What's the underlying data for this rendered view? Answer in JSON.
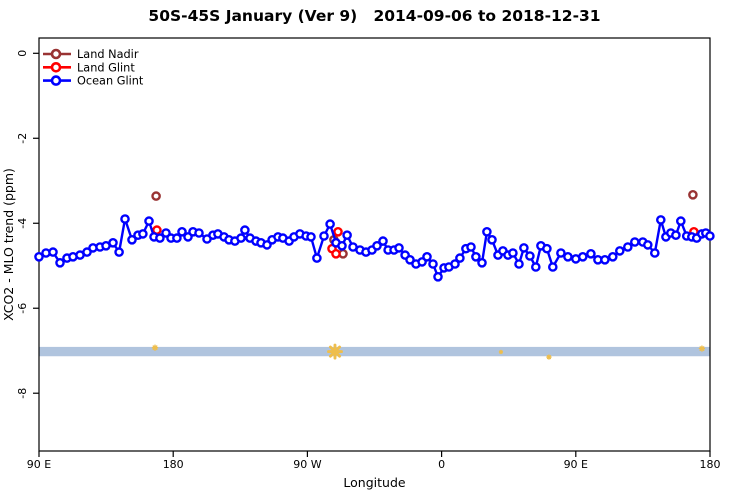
{
  "figure": {
    "title_main": "50S-45S January (Ver 9)",
    "title_dates": "2014-09-06 to 2018-12-31"
  },
  "chart_data": {
    "type": "line",
    "title": "50S-45S January (Ver 9)   2014-09-06 to 2018-12-31",
    "xlabel": "Longitude",
    "ylabel": "XCO2 - MLO trend (ppm)",
    "x_axis": {
      "range": [
        90,
        540
      ],
      "ticks": [
        90,
        180,
        270,
        360,
        450,
        540
      ],
      "tick_labels": [
        "90 E",
        "180",
        "90 W",
        "0",
        "90 E",
        "180"
      ],
      "note": "longitude wrapped eastward from 90E around the globe to 180"
    },
    "y_axis": {
      "range": [
        -9.36,
        0.36
      ],
      "ticks": [
        0,
        -2,
        -4,
        -6,
        -8
      ],
      "tick_labels": [
        "0",
        "-2",
        "-4",
        "-6",
        "-8"
      ],
      "grid": false
    },
    "legend": {
      "position": "top-left",
      "items": [
        {
          "label": "Land Nadir",
          "color": "#993333"
        },
        {
          "label": "Land Glint",
          "color": "#FF0000"
        },
        {
          "label": "Ocean Glint",
          "color": "#0000FF"
        }
      ]
    },
    "series": [
      {
        "name": "Land Nadir",
        "color": "#993333",
        "line": false,
        "marker": "open-circle",
        "points": [
          [
            168.5,
            -3.36
          ],
          [
            287.8,
            -4.39
          ],
          [
            293.9,
            -4.72
          ],
          [
            528.5,
            -3.33
          ]
        ]
      },
      {
        "name": "Land Glint",
        "color": "#FF0000",
        "line": false,
        "marker": "open-circle",
        "points": [
          [
            169.1,
            -4.16
          ],
          [
            286.5,
            -4.6
          ],
          [
            289.2,
            -4.72
          ],
          [
            290.5,
            -4.2
          ],
          [
            529.2,
            -4.2
          ]
        ]
      },
      {
        "name": "Ocean Glint",
        "color": "#0000FF",
        "line": true,
        "marker": "open-circle",
        "points": [
          [
            90.0,
            -4.79
          ],
          [
            94.7,
            -4.7
          ],
          [
            99.4,
            -4.68
          ],
          [
            104.1,
            -4.93
          ],
          [
            108.8,
            -4.82
          ],
          [
            112.8,
            -4.79
          ],
          [
            117.5,
            -4.75
          ],
          [
            122.2,
            -4.68
          ],
          [
            126.2,
            -4.58
          ],
          [
            130.9,
            -4.56
          ],
          [
            134.9,
            -4.53
          ],
          [
            139.6,
            -4.46
          ],
          [
            143.7,
            -4.68
          ],
          [
            147.7,
            -3.9
          ],
          [
            152.4,
            -4.39
          ],
          [
            156.4,
            -4.28
          ],
          [
            159.7,
            -4.25
          ],
          [
            163.8,
            -3.95
          ],
          [
            167.1,
            -4.32
          ],
          [
            171.1,
            -4.35
          ],
          [
            175.2,
            -4.23
          ],
          [
            178.5,
            -4.35
          ],
          [
            182.5,
            -4.35
          ],
          [
            185.9,
            -4.2
          ],
          [
            189.9,
            -4.32
          ],
          [
            193.3,
            -4.2
          ],
          [
            197.3,
            -4.23
          ],
          [
            202.7,
            -4.37
          ],
          [
            206.7,
            -4.28
          ],
          [
            210.0,
            -4.25
          ],
          [
            214.1,
            -4.32
          ],
          [
            217.4,
            -4.39
          ],
          [
            221.4,
            -4.42
          ],
          [
            225.5,
            -4.35
          ],
          [
            228.1,
            -4.16
          ],
          [
            231.5,
            -4.35
          ],
          [
            235.5,
            -4.42
          ],
          [
            238.9,
            -4.46
          ],
          [
            242.9,
            -4.51
          ],
          [
            246.3,
            -4.39
          ],
          [
            250.3,
            -4.32
          ],
          [
            253.6,
            -4.35
          ],
          [
            257.7,
            -4.42
          ],
          [
            261.0,
            -4.32
          ],
          [
            265.0,
            -4.25
          ],
          [
            269.1,
            -4.3
          ],
          [
            272.4,
            -4.32
          ],
          [
            276.4,
            -4.82
          ],
          [
            281.1,
            -4.3
          ],
          [
            285.2,
            -4.02
          ],
          [
            289.2,
            -4.46
          ],
          [
            293.2,
            -4.53
          ],
          [
            296.6,
            -4.28
          ],
          [
            300.6,
            -4.56
          ],
          [
            305.3,
            -4.63
          ],
          [
            309.3,
            -4.68
          ],
          [
            313.3,
            -4.63
          ],
          [
            316.7,
            -4.53
          ],
          [
            320.7,
            -4.42
          ],
          [
            324.1,
            -4.63
          ],
          [
            328.1,
            -4.63
          ],
          [
            331.4,
            -4.58
          ],
          [
            335.5,
            -4.75
          ],
          [
            338.8,
            -4.86
          ],
          [
            342.8,
            -4.96
          ],
          [
            346.9,
            -4.91
          ],
          [
            350.2,
            -4.79
          ],
          [
            354.2,
            -4.96
          ],
          [
            357.6,
            -5.26
          ],
          [
            361.6,
            -5.05
          ],
          [
            364.9,
            -5.03
          ],
          [
            369.0,
            -4.96
          ],
          [
            372.3,
            -4.82
          ],
          [
            376.3,
            -4.6
          ],
          [
            379.7,
            -4.56
          ],
          [
            383.0,
            -4.79
          ],
          [
            387.1,
            -4.93
          ],
          [
            390.4,
            -4.2
          ],
          [
            393.8,
            -4.39
          ],
          [
            397.8,
            -4.75
          ],
          [
            401.1,
            -4.65
          ],
          [
            404.5,
            -4.75
          ],
          [
            407.8,
            -4.7
          ],
          [
            411.9,
            -4.96
          ],
          [
            415.2,
            -4.58
          ],
          [
            419.2,
            -4.77
          ],
          [
            423.2,
            -5.03
          ],
          [
            426.6,
            -4.53
          ],
          [
            430.6,
            -4.6
          ],
          [
            434.6,
            -5.03
          ],
          [
            440.0,
            -4.7
          ],
          [
            444.7,
            -4.79
          ],
          [
            450.0,
            -4.84
          ],
          [
            454.7,
            -4.79
          ],
          [
            460.1,
            -4.72
          ],
          [
            464.8,
            -4.86
          ],
          [
            469.5,
            -4.86
          ],
          [
            474.8,
            -4.79
          ],
          [
            479.5,
            -4.65
          ],
          [
            484.9,
            -4.56
          ],
          [
            489.6,
            -4.44
          ],
          [
            494.9,
            -4.44
          ],
          [
            498.3,
            -4.51
          ],
          [
            503.0,
            -4.7
          ],
          [
            507.0,
            -3.92
          ],
          [
            510.4,
            -4.32
          ],
          [
            513.7,
            -4.23
          ],
          [
            517.1,
            -4.28
          ],
          [
            520.4,
            -3.95
          ],
          [
            524.4,
            -4.3
          ],
          [
            527.8,
            -4.32
          ],
          [
            531.1,
            -4.35
          ],
          [
            534.5,
            -4.25
          ],
          [
            537.2,
            -4.23
          ],
          [
            539.9,
            -4.3
          ]
        ]
      }
    ],
    "coverage_band": {
      "color": "#B0C4DE",
      "y": -7.02,
      "half_width": 0.11,
      "x_range": [
        90,
        540
      ]
    },
    "coverage_marks": {
      "color": "#EEBE4D",
      "points": [
        [
          167.8,
          -6.93,
          5
        ],
        [
          288.5,
          -7.02,
          13
        ],
        [
          399.8,
          -7.03,
          3
        ],
        [
          432.0,
          -7.15,
          4
        ],
        [
          534.6,
          -6.95,
          5
        ]
      ]
    }
  }
}
